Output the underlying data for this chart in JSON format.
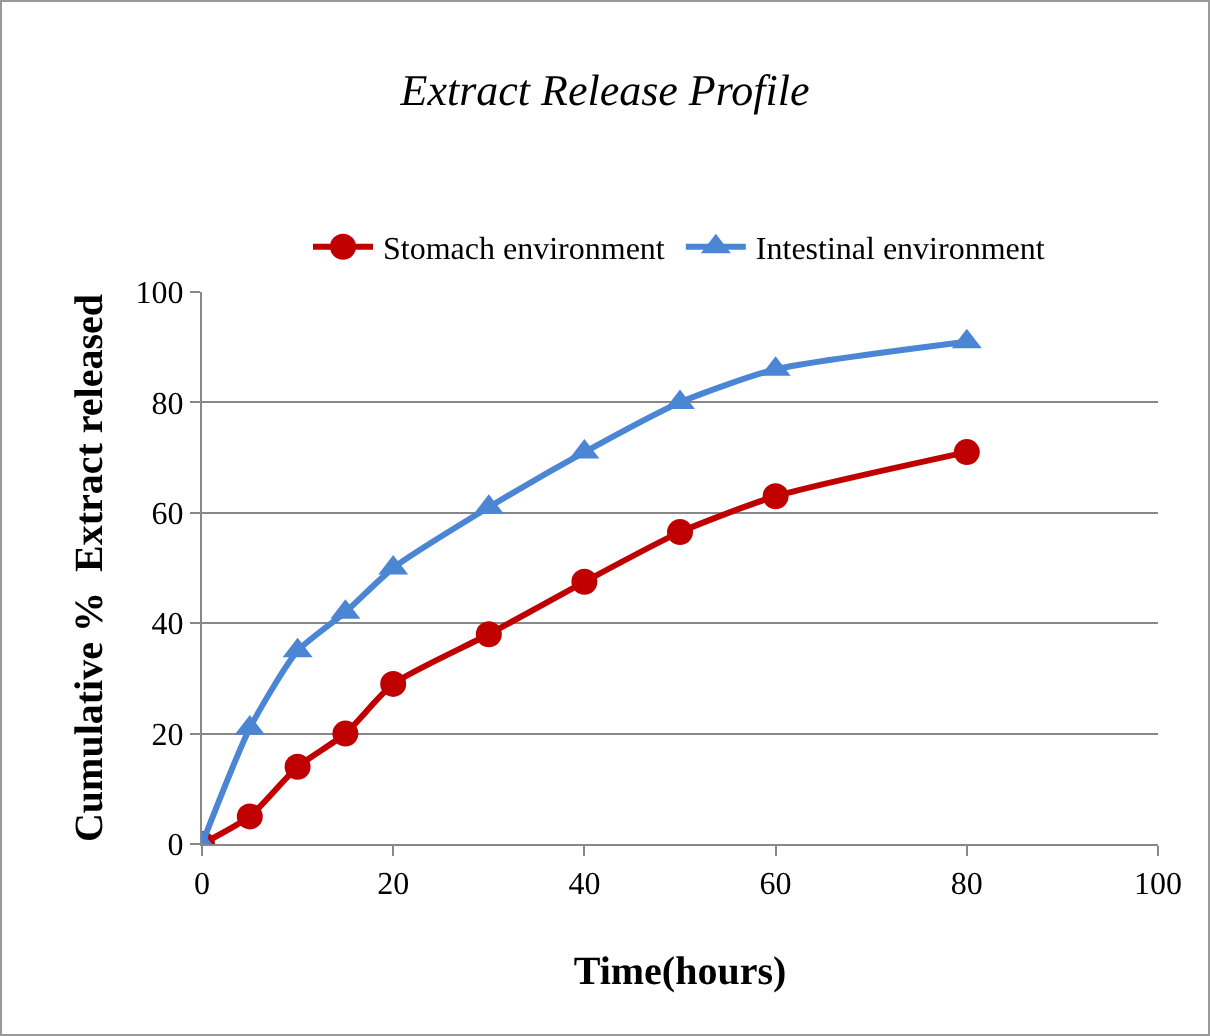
{
  "chart_data": {
    "type": "line",
    "title": "Extract Release Profile",
    "xlabel": "Time(hours)",
    "ylabel": "Cumulative %  Extract released",
    "x": [
      0,
      5,
      10,
      15,
      20,
      30,
      40,
      50,
      60,
      80
    ],
    "series": [
      {
        "name": "Stomach environment",
        "color": "#c00000",
        "marker": "circle",
        "values": [
          0,
          5,
          14,
          20,
          29,
          38,
          47.5,
          56.5,
          63,
          71
        ]
      },
      {
        "name": "Intestinal environment",
        "color": "#4a86d4",
        "marker": "triangle",
        "values": [
          0,
          21,
          35,
          42,
          50,
          61,
          71,
          80,
          86,
          91
        ]
      }
    ],
    "xlim": [
      0,
      100
    ],
    "xticks": [
      0,
      20,
      40,
      60,
      80,
      100
    ],
    "ylim": [
      0,
      100
    ],
    "yticks": [
      0,
      20,
      40,
      60,
      80,
      100
    ],
    "grid": "y",
    "legend": "top",
    "line_style": "solid"
  }
}
